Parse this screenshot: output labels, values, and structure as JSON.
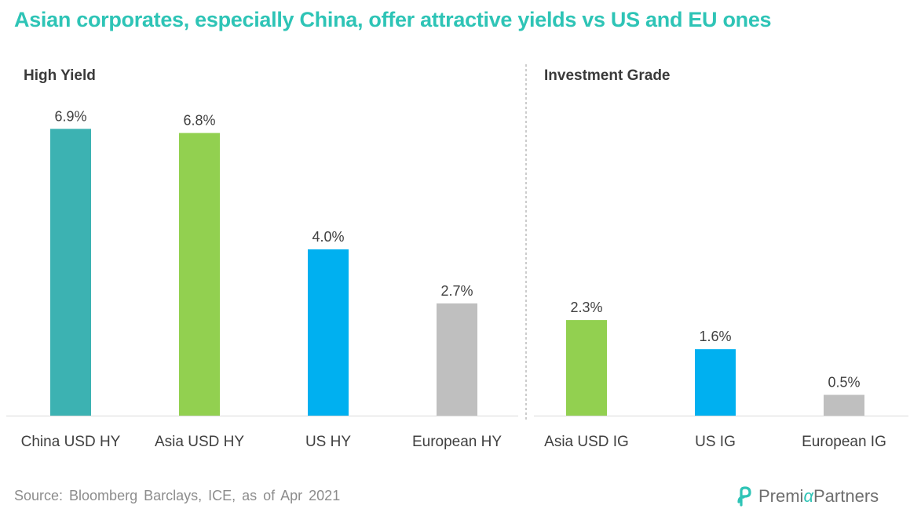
{
  "title": "Asian corporates, especially China, offer attractive yields vs US and EU ones",
  "panels": {
    "left_title": "High Yield",
    "right_title": "Investment Grade"
  },
  "source": "Source: Bloomberg Barclays, ICE, as of Apr 2021",
  "logo": {
    "text_pre": "Premi",
    "text_alpha": "α",
    "text_post": "Partners"
  },
  "colors": {
    "title": "#2ec4b6",
    "china": "#3cb2b2",
    "asia": "#92d050",
    "us": "#00b0f0",
    "europe": "#bfbfbf"
  },
  "chart_data": {
    "type": "bar",
    "categories": [
      "China USD HY",
      "Asia USD HY",
      "US HY",
      "European HY",
      "Asia USD IG",
      "US IG",
      "European IG"
    ],
    "values": [
      6.9,
      6.8,
      4.0,
      2.7,
      2.3,
      1.6,
      0.5
    ],
    "data_labels": [
      "6.9%",
      "6.8%",
      "4.0%",
      "2.7%",
      "2.3%",
      "1.6%",
      "0.5%"
    ],
    "bar_colors": [
      "#3cb2b2",
      "#92d050",
      "#00b0f0",
      "#bfbfbf",
      "#92d050",
      "#00b0f0",
      "#bfbfbf"
    ],
    "groups": [
      {
        "title": "High Yield",
        "categories": [
          "China USD HY",
          "Asia USD HY",
          "US HY",
          "European HY"
        ]
      },
      {
        "title": "Investment Grade",
        "categories": [
          "Asia USD IG",
          "US IG",
          "European IG"
        ]
      }
    ],
    "ylim": [
      0,
      7
    ],
    "grid": false,
    "xlabel": "",
    "ylabel": ""
  }
}
